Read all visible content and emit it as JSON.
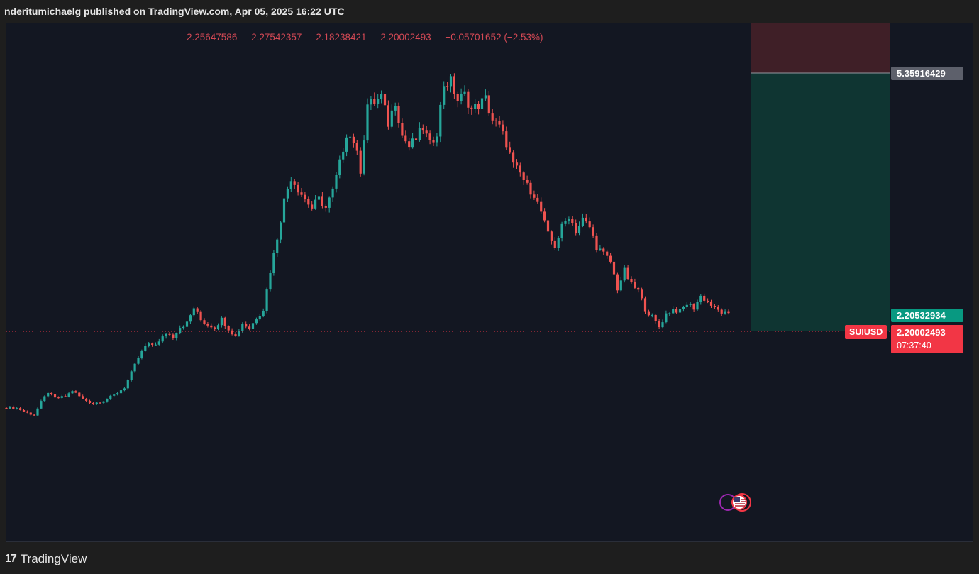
{
  "header": {
    "title": "nderitumichaelg published on TradingView.com, Apr 05, 2025 16:22 UTC"
  },
  "ohlc": {
    "open": "2.25647586",
    "high": "2.27542357",
    "low": "2.18238421",
    "close": "2.20002493",
    "change": "−0.05701652 (−2.53%)"
  },
  "price_axis": {
    "target_price": "5.35916429",
    "entry_price": "2.20532934",
    "last_price": "2.20002493",
    "countdown": "07:37:40",
    "symbol": "SUIUSD"
  },
  "footer": {
    "brand": "TradingView"
  },
  "colors": {
    "up": "#26a69a",
    "down": "#ef5350",
    "background": "#131722",
    "profit_zone": "#0f3532",
    "stop_zone": "#3f1f27"
  },
  "icons": [
    "tradingview-logo-icon",
    "us-flag-event-icon"
  ],
  "chart_data": {
    "type": "candlestick",
    "symbol": "SUIUSD",
    "last_price": 2.20002493,
    "position": {
      "type": "long",
      "entry": 2.20532934,
      "target": 5.35916429
    },
    "close_path": [
      [
        0,
        1.0
      ],
      [
        3,
        0.99
      ],
      [
        6,
        0.93
      ],
      [
        8,
        0.9
      ],
      [
        10,
        1.07
      ],
      [
        12,
        1.2
      ],
      [
        14,
        1.12
      ],
      [
        17,
        1.14
      ],
      [
        19,
        1.22
      ],
      [
        22,
        1.11
      ],
      [
        25,
        1.05
      ],
      [
        28,
        1.09
      ],
      [
        31,
        1.16
      ],
      [
        34,
        1.26
      ],
      [
        36,
        1.45
      ],
      [
        38,
        1.65
      ],
      [
        40,
        1.8
      ],
      [
        42,
        1.82
      ],
      [
        44,
        1.85
      ],
      [
        46,
        1.97
      ],
      [
        48,
        1.93
      ],
      [
        50,
        2.05
      ],
      [
        52,
        2.1
      ],
      [
        54,
        2.3
      ],
      [
        56,
        2.14
      ],
      [
        58,
        2.08
      ],
      [
        60,
        2.05
      ],
      [
        62,
        2.15
      ],
      [
        64,
        2.03
      ],
      [
        66,
        1.93
      ],
      [
        68,
        2.1
      ],
      [
        70,
        2.03
      ],
      [
        72,
        2.17
      ],
      [
        74,
        2.28
      ],
      [
        76,
        2.78
      ],
      [
        78,
        3.22
      ],
      [
        80,
        3.7
      ],
      [
        82,
        4.0
      ],
      [
        84,
        3.85
      ],
      [
        86,
        3.72
      ],
      [
        88,
        3.6
      ],
      [
        90,
        3.72
      ],
      [
        92,
        3.6
      ],
      [
        94,
        3.82
      ],
      [
        96,
        4.18
      ],
      [
        98,
        4.58
      ],
      [
        100,
        4.48
      ],
      [
        102,
        4.1
      ],
      [
        104,
        4.95
      ],
      [
        106,
        4.98
      ],
      [
        108,
        5.05
      ],
      [
        110,
        4.7
      ],
      [
        112,
        5.0
      ],
      [
        114,
        4.55
      ],
      [
        116,
        4.4
      ],
      [
        118,
        4.5
      ],
      [
        120,
        4.65
      ],
      [
        122,
        4.42
      ],
      [
        124,
        4.6
      ],
      [
        126,
        5.22
      ],
      [
        128,
        5.25
      ],
      [
        130,
        5.0
      ],
      [
        132,
        5.08
      ],
      [
        134,
        4.88
      ],
      [
        136,
        4.95
      ],
      [
        138,
        5.02
      ],
      [
        140,
        4.75
      ],
      [
        142,
        4.65
      ],
      [
        144,
        4.45
      ],
      [
        146,
        4.15
      ],
      [
        148,
        4.05
      ],
      [
        150,
        3.88
      ],
      [
        152,
        3.78
      ],
      [
        154,
        3.55
      ],
      [
        156,
        3.25
      ],
      [
        158,
        3.1
      ],
      [
        160,
        3.35
      ],
      [
        162,
        3.5
      ],
      [
        164,
        3.3
      ],
      [
        166,
        3.45
      ],
      [
        168,
        3.35
      ],
      [
        170,
        3.1
      ],
      [
        172,
        3.0
      ],
      [
        174,
        2.9
      ],
      [
        176,
        2.55
      ],
      [
        178,
        2.78
      ],
      [
        180,
        2.6
      ],
      [
        182,
        2.52
      ],
      [
        184,
        2.28
      ],
      [
        186,
        2.18
      ],
      [
        188,
        2.05
      ],
      [
        190,
        2.22
      ],
      [
        192,
        2.28
      ],
      [
        194,
        2.25
      ],
      [
        196,
        2.35
      ],
      [
        198,
        2.3
      ],
      [
        200,
        2.45
      ],
      [
        202,
        2.38
      ],
      [
        204,
        2.29
      ],
      [
        206,
        2.24
      ],
      [
        208,
        2.2
      ]
    ]
  }
}
